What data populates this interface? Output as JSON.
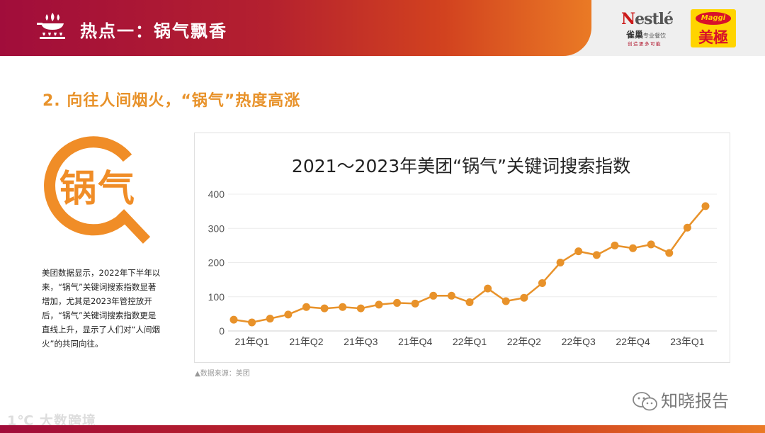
{
  "header": {
    "title": "热点一：锅气飘香",
    "icon": "wok-fire-icon",
    "brand1": {
      "word_prefix": "N",
      "word_rest": "estlé",
      "cn": "雀巢",
      "cn_small": "专业餐饮",
      "tagline": "创造更多可能"
    },
    "brand2": {
      "latin": "Maggi",
      "cn": "美極"
    }
  },
  "section": {
    "subtitle": "2. 向往人间烟火，“锅气”热度高涨",
    "magnifier_text": "锅气",
    "description": "美团数据显示，2022年下半年以来，“锅气”关键词搜索指数显著增加，尤其是2023年管控放开后，“锅气”关键词搜索指数更是直线上升，显示了人们对“人间烟火”的共同向往。"
  },
  "chart_data": {
    "type": "line",
    "title": "2021～2023年美团“锅气”关键词搜索指数",
    "xlabel": "",
    "ylabel": "",
    "ylim": [
      0,
      400
    ],
    "yticks": [
      0,
      100,
      200,
      300,
      400
    ],
    "grid": true,
    "legend": "none",
    "color": "#e8922a",
    "x_tick_labels": [
      "21年Q1",
      "21年Q2",
      "21年Q3",
      "21年Q4",
      "22年Q1",
      "22年Q2",
      "22年Q3",
      "22年Q4",
      "23年Q1"
    ],
    "x_tick_point_index": [
      1,
      4,
      7,
      10,
      13,
      16,
      19,
      22,
      25
    ],
    "values": [
      33,
      25,
      36,
      48,
      70,
      66,
      70,
      66,
      77,
      82,
      80,
      103,
      103,
      84,
      124,
      87,
      97,
      140,
      200,
      233,
      222,
      250,
      242,
      253,
      228,
      302,
      365
    ]
  },
  "source": "▲数据来源：美团",
  "watermark": "知晓报告",
  "footer_left": "1℃ 大数跨境"
}
